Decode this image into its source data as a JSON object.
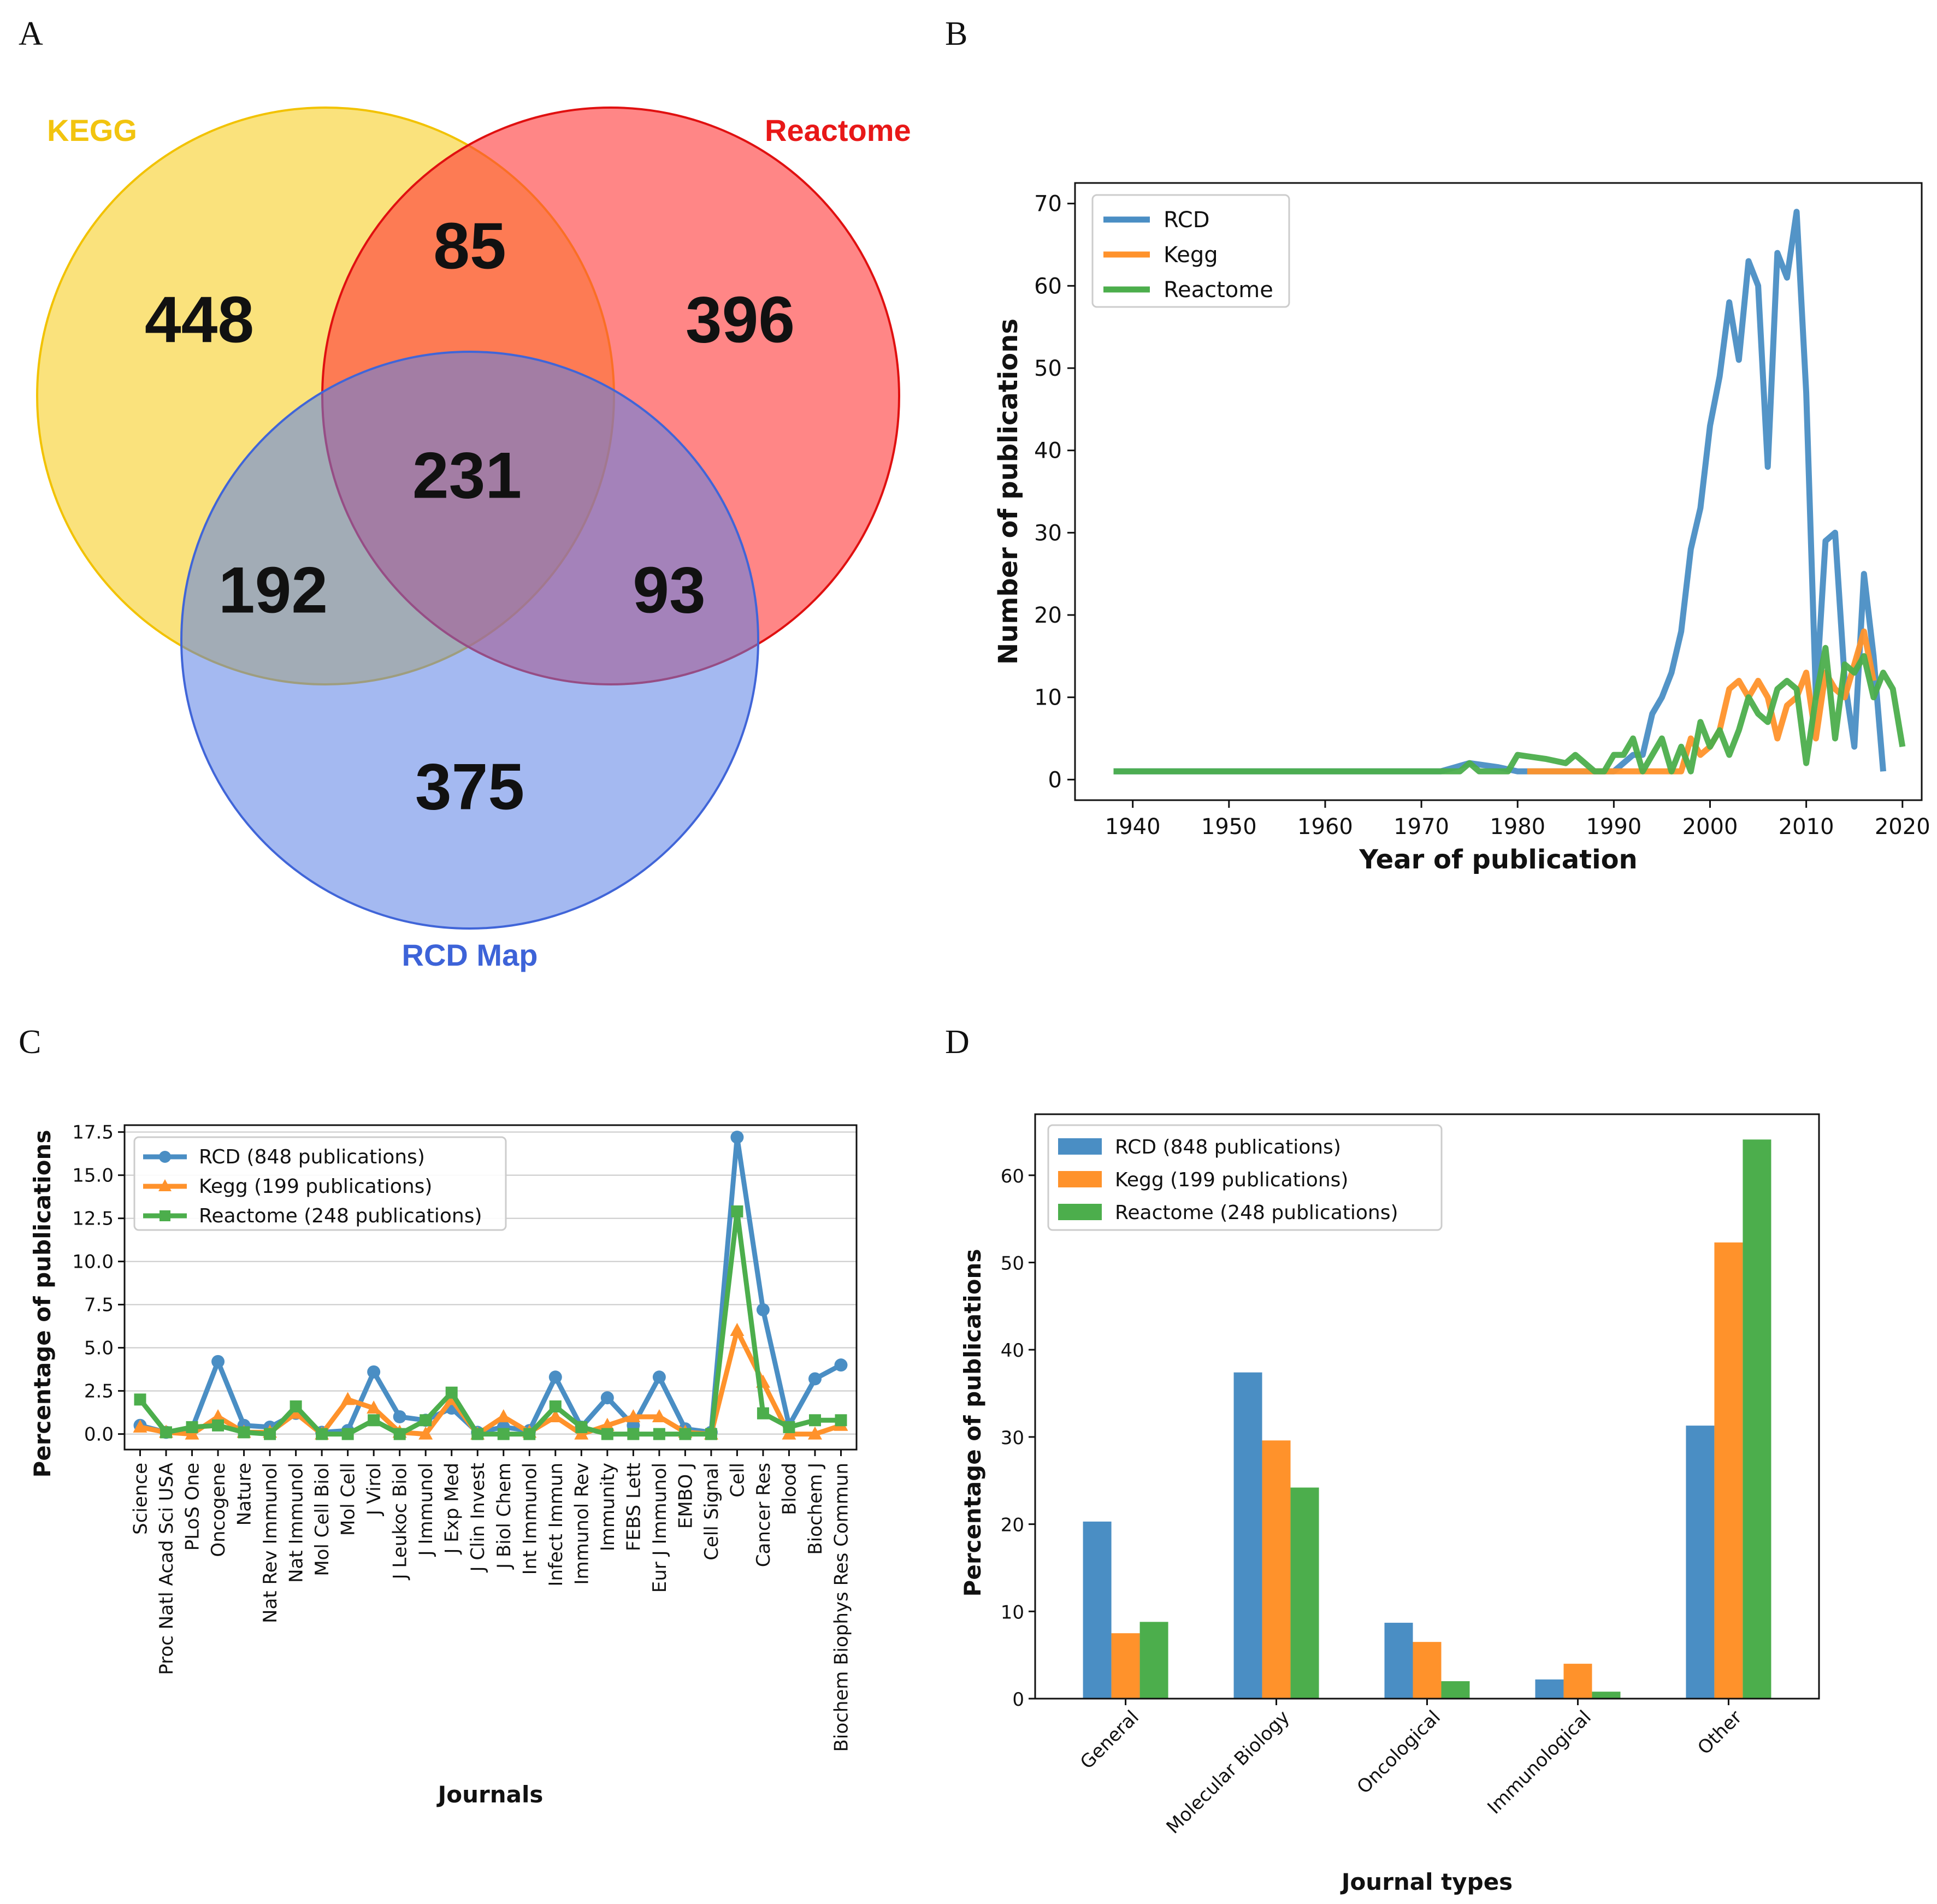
{
  "panel_labels": {
    "a": "A",
    "b": "B",
    "c": "C",
    "d": "D"
  },
  "colors": {
    "rcd": "#4a8ec4",
    "kegg": "#ff922b",
    "reactome": "#4cae4c",
    "venn_kegg": "#f8d336",
    "venn_reactome": "#ff5252",
    "venn_rcd": "#5a7fe6"
  },
  "chart_data": [
    {
      "id": "A",
      "type": "venn",
      "sets": [
        {
          "name": "KEGG",
          "color": "#f6d32d"
        },
        {
          "name": "Reactome",
          "color": "#ee2a2a"
        },
        {
          "name": "RCD Map",
          "color": "#4a6fd8"
        }
      ],
      "regions": {
        "kegg_only": 448,
        "reactome_only": 396,
        "rcd_only": 375,
        "kegg_reactome": 85,
        "kegg_rcd": 192,
        "reactome_rcd": 93,
        "all": 231
      }
    },
    {
      "id": "B",
      "type": "line",
      "xlabel": "Year of publication",
      "ylabel": "Number of publications",
      "xlim": [
        1934,
        2022
      ],
      "ylim": [
        -2.5,
        72.5
      ],
      "xticks": [
        1940,
        1950,
        1960,
        1970,
        1980,
        1990,
        2000,
        2010,
        2020
      ],
      "yticks": [
        0,
        10,
        20,
        30,
        40,
        50,
        60,
        70
      ],
      "legend_position": "top-left",
      "series": [
        {
          "name": "RCD",
          "color": "#4a8ec4",
          "points": [
            [
              1938,
              1
            ],
            [
              1950,
              1
            ],
            [
              1960,
              1
            ],
            [
              1970,
              1
            ],
            [
              1972,
              1
            ],
            [
              1975,
              2
            ],
            [
              1978,
              1.5
            ],
            [
              1980,
              1
            ],
            [
              1985,
              1
            ],
            [
              1990,
              1
            ],
            [
              1992,
              3
            ],
            [
              1993,
              3
            ],
            [
              1994,
              8
            ],
            [
              1995,
              10
            ],
            [
              1996,
              13
            ],
            [
              1997,
              18
            ],
            [
              1998,
              28
            ],
            [
              1999,
              33
            ],
            [
              2000,
              43
            ],
            [
              2001,
              49
            ],
            [
              2002,
              58
            ],
            [
              2003,
              51
            ],
            [
              2004,
              63
            ],
            [
              2005,
              60
            ],
            [
              2006,
              38
            ],
            [
              2007,
              64
            ],
            [
              2008,
              61
            ],
            [
              2009,
              69
            ],
            [
              2010,
              47
            ],
            [
              2011,
              10
            ],
            [
              2012,
              29
            ],
            [
              2013,
              30
            ],
            [
              2014,
              12
            ],
            [
              2015,
              4
            ],
            [
              2016,
              25
            ],
            [
              2017,
              15
            ],
            [
              2018,
              1
            ]
          ]
        },
        {
          "name": "Kegg",
          "color": "#ff922b",
          "points": [
            [
              1981,
              1
            ],
            [
              1985,
              1
            ],
            [
              1990,
              1
            ],
            [
              1994,
              1
            ],
            [
              1996,
              1
            ],
            [
              1997,
              1
            ],
            [
              1998,
              5
            ],
            [
              1999,
              3
            ],
            [
              2000,
              4
            ],
            [
              2001,
              6
            ],
            [
              2002,
              11
            ],
            [
              2003,
              12
            ],
            [
              2004,
              10
            ],
            [
              2005,
              12
            ],
            [
              2006,
              10
            ],
            [
              2007,
              5
            ],
            [
              2008,
              9
            ],
            [
              2009,
              10
            ],
            [
              2010,
              13
            ],
            [
              2011,
              5
            ],
            [
              2012,
              13
            ],
            [
              2013,
              11
            ],
            [
              2014,
              10
            ],
            [
              2015,
              14
            ],
            [
              2016,
              18
            ],
            [
              2017,
              12
            ]
          ]
        },
        {
          "name": "Reactome",
          "color": "#4cae4c",
          "points": [
            [
              1938,
              1
            ],
            [
              1950,
              1
            ],
            [
              1960,
              1
            ],
            [
              1970,
              1
            ],
            [
              1974,
              1
            ],
            [
              1975,
              2
            ],
            [
              1976,
              1
            ],
            [
              1977,
              1
            ],
            [
              1978,
              1
            ],
            [
              1979,
              1
            ],
            [
              1980,
              3
            ],
            [
              1983,
              2.5
            ],
            [
              1985,
              2
            ],
            [
              1986,
              3
            ],
            [
              1987,
              2
            ],
            [
              1988,
              1
            ],
            [
              1989,
              1
            ],
            [
              1990,
              3
            ],
            [
              1991,
              3
            ],
            [
              1992,
              5
            ],
            [
              1993,
              1
            ],
            [
              1994,
              3
            ],
            [
              1995,
              5
            ],
            [
              1996,
              1
            ],
            [
              1997,
              4
            ],
            [
              1998,
              1
            ],
            [
              1999,
              7
            ],
            [
              2000,
              4
            ],
            [
              2001,
              6
            ],
            [
              2002,
              3
            ],
            [
              2003,
              6
            ],
            [
              2004,
              10
            ],
            [
              2005,
              8
            ],
            [
              2006,
              7
            ],
            [
              2007,
              11
            ],
            [
              2008,
              12
            ],
            [
              2009,
              11
            ],
            [
              2010,
              2
            ],
            [
              2011,
              10
            ],
            [
              2012,
              16
            ],
            [
              2013,
              5
            ],
            [
              2014,
              14
            ],
            [
              2015,
              13
            ],
            [
              2016,
              15
            ],
            [
              2017,
              10
            ],
            [
              2018,
              13
            ],
            [
              2019,
              11
            ],
            [
              2020,
              4
            ]
          ]
        }
      ]
    },
    {
      "id": "C",
      "type": "line",
      "xlabel": "Journals",
      "ylabel": "Percentage of publications",
      "ylim": [
        -0.9,
        17.9
      ],
      "yticks": [
        "0.0",
        "2.5",
        "5.0",
        "7.5",
        "10.0",
        "12.5",
        "15.0",
        "17.5"
      ],
      "legend_position": "top-left",
      "grid": true,
      "categories": [
        "Science",
        "Proc Natl Acad Sci USA",
        "PLoS One",
        "Oncogene",
        "Nature",
        "Nat Rev Immunol",
        "Nat Immunol",
        "Mol Cell Biol",
        "Mol Cell",
        "J Virol",
        "J Leukoc Biol",
        "J Immunol",
        "J Exp Med",
        "J Clin Invest",
        "J Biol Chem",
        "Int Immunol",
        "Infect Immun",
        "Immunol Rev",
        "Immunity",
        "FEBS Lett",
        "Eur J Immunol",
        "EMBO J",
        "Cell Signal",
        "Cell",
        "Cancer Res",
        "Blood",
        "Biochem J",
        "Biochem Biophys Res Commun"
      ],
      "series": [
        {
          "name": "RCD (848 publications)",
          "color": "#4a8ec4",
          "marker": "circle",
          "values": [
            0.5,
            0.1,
            0.3,
            4.2,
            0.5,
            0.4,
            1.2,
            0.1,
            0.2,
            3.6,
            1.0,
            0.8,
            1.5,
            0.1,
            0.4,
            0.2,
            3.3,
            0.4,
            2.1,
            0.5,
            3.3,
            0.3,
            0.1,
            17.2,
            7.2,
            0.5,
            3.2,
            4.0
          ]
        },
        {
          "name": "Kegg (199 publications)",
          "color": "#ff922b",
          "marker": "triangle",
          "values": [
            0.4,
            0.1,
            0.0,
            1.0,
            0.1,
            0.1,
            1.2,
            0.0,
            2.0,
            1.5,
            0.1,
            0.0,
            2.0,
            0.0,
            1.0,
            0.1,
            1.0,
            0.0,
            0.5,
            1.0,
            1.0,
            0.1,
            0.0,
            6.0,
            3.0,
            0.0,
            0.0,
            0.5
          ]
        },
        {
          "name": "Reactome (248 publications)",
          "color": "#4cae4c",
          "marker": "square",
          "values": [
            2.0,
            0.1,
            0.4,
            0.5,
            0.1,
            0.0,
            1.6,
            0.0,
            0.0,
            0.8,
            0.0,
            0.8,
            2.4,
            0.0,
            0.0,
            0.0,
            1.6,
            0.4,
            0.0,
            0.0,
            0.0,
            0.0,
            0.0,
            12.9,
            1.2,
            0.4,
            0.8,
            0.8
          ]
        }
      ]
    },
    {
      "id": "D",
      "type": "bar",
      "xlabel": "Journal types",
      "ylabel": "Percentage of publications",
      "ylim": [
        0,
        67
      ],
      "yticks": [
        0,
        10,
        20,
        30,
        40,
        50,
        60
      ],
      "legend_position": "top-left",
      "categories": [
        "General",
        "Molecular Biology",
        "Oncological",
        "Immunological",
        "Other"
      ],
      "series": [
        {
          "name": "RCD (848 publications)",
          "color": "#4a8ec4",
          "values": [
            20.3,
            37.4,
            8.7,
            2.2,
            31.3
          ]
        },
        {
          "name": "Kegg (199 publications)",
          "color": "#ff922b",
          "values": [
            7.5,
            29.6,
            6.5,
            4.0,
            52.3
          ]
        },
        {
          "name": "Reactome (248 publications)",
          "color": "#4cae4c",
          "values": [
            8.8,
            24.2,
            2.0,
            0.8,
            64.1
          ]
        }
      ]
    }
  ]
}
